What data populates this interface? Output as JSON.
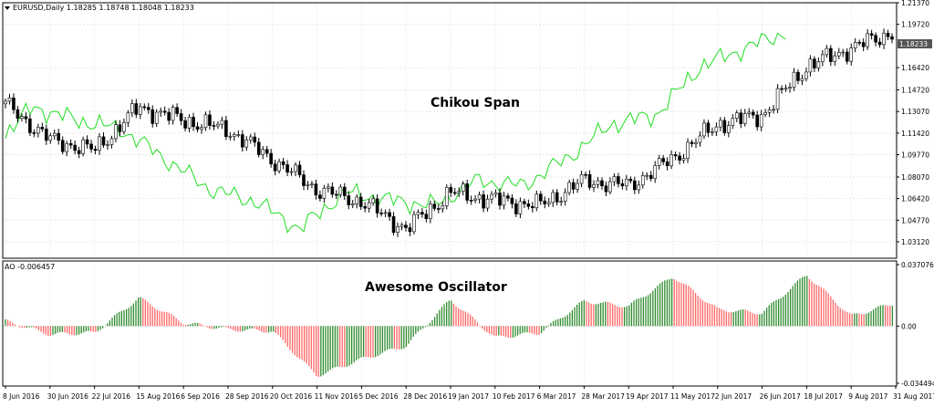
{
  "chart_data": [
    {
      "type": "candlestick",
      "header": "EURUSD,Daily  1.18285 1.18748 1.18048 1.18233",
      "annotation": "Chikou Span",
      "ylim": [
        1.0312,
        1.2137
      ],
      "y_ticks": [
        "1.21370",
        "1.19720",
        "1.18233",
        "1.16420",
        "1.14720",
        "1.13070",
        "1.11420",
        "1.09770",
        "1.08070",
        "1.06420",
        "1.04770",
        "1.03120"
      ],
      "current_price": "1.18233",
      "grid": true,
      "x_ticks": [
        "8 Jun 2016",
        "30 Jun 2016",
        "22 Jul 2016",
        "15 Aug 2016",
        "6 Sep 2016",
        "28 Sep 2016",
        "20 Oct 2016",
        "11 Nov 2016",
        "5 Dec 2016",
        "28 Dec 2016",
        "19 Jan 2017",
        "10 Feb 2017",
        "6 Mar 2017",
        "28 Mar 2017",
        "19 Apr 2017",
        "11 May 2017",
        "2 Jun 2017",
        "26 Jun 2017",
        "18 Jul 2017",
        "9 Aug 2017",
        "31 Aug 2017"
      ],
      "close_anchors": [
        {
          "x": "8 Jun 2016",
          "y": 1.136
        },
        {
          "x": "30 Jun 2016",
          "y": 1.109
        },
        {
          "x": "22 Jul 2016",
          "y": 1.101
        },
        {
          "x": "15 Aug 2016",
          "y": 1.134
        },
        {
          "x": "6 Sep 2016",
          "y": 1.124
        },
        {
          "x": "28 Sep 2016",
          "y": 1.117
        },
        {
          "x": "20 Oct 2016",
          "y": 1.094
        },
        {
          "x": "11 Nov 2016",
          "y": 1.071
        },
        {
          "x": "5 Dec 2016",
          "y": 1.062
        },
        {
          "x": "28 Dec 2016",
          "y": 1.041
        },
        {
          "x": "19 Jan 2017",
          "y": 1.069
        },
        {
          "x": "10 Feb 2017",
          "y": 1.063
        },
        {
          "x": "6 Mar 2017",
          "y": 1.059
        },
        {
          "x": "28 Mar 2017",
          "y": 1.078
        },
        {
          "x": "19 Apr 2017",
          "y": 1.074
        },
        {
          "x": "11 May 2017",
          "y": 1.095
        },
        {
          "x": "2 Jun 2017",
          "y": 1.121
        },
        {
          "x": "26 Jun 2017",
          "y": 1.128
        },
        {
          "x": "18 Jul 2017",
          "y": 1.165
        },
        {
          "x": "9 Aug 2017",
          "y": 1.179
        },
        {
          "x": "31 Aug 2017",
          "y": 1.192
        }
      ],
      "series": [
        {
          "name": "Chikou Span",
          "color": "#22dd22"
        }
      ]
    },
    {
      "type": "bar",
      "header": "AO -0.006457",
      "annotation": "Awesome Oscillator",
      "ylim": [
        -0.034494,
        0.037076
      ],
      "y_ticks": [
        "0.037076",
        "0.00",
        "-0.034494"
      ],
      "grid": true,
      "x_ticks": [
        "8 Jun 2016",
        "30 Jun 2016",
        "22 Jul 2016",
        "15 Aug 2016",
        "6 Sep 2016",
        "28 Sep 2016",
        "20 Oct 2016",
        "11 Nov 2016",
        "5 Dec 2016",
        "28 Dec 2016",
        "19 Jan 2017",
        "10 Feb 2017",
        "6 Mar 2017",
        "28 Mar 2017",
        "19 Apr 2017",
        "11 May 2017",
        "2 Jun 2017",
        "26 Jun 2017",
        "18 Jul 2017",
        "9 Aug 2017",
        "31 Aug 2017"
      ],
      "value_anchors": [
        {
          "x": "8 Jun 2016",
          "y": 0.003
        },
        {
          "x": "30 Jun 2016",
          "y": -0.005
        },
        {
          "x": "22 Jul 2016",
          "y": -0.004
        },
        {
          "x": "15 Aug 2016",
          "y": 0.017
        },
        {
          "x": "6 Sep 2016",
          "y": 0.002
        },
        {
          "x": "28 Sep 2016",
          "y": -0.002
        },
        {
          "x": "20 Oct 2016",
          "y": -0.003
        },
        {
          "x": "11 Nov 2016",
          "y": -0.03
        },
        {
          "x": "5 Dec 2016",
          "y": -0.02
        },
        {
          "x": "28 Dec 2016",
          "y": -0.012
        },
        {
          "x": "19 Jan 2017",
          "y": 0.016
        },
        {
          "x": "10 Feb 2017",
          "y": -0.007
        },
        {
          "x": "6 Mar 2017",
          "y": -0.004
        },
        {
          "x": "28 Mar 2017",
          "y": 0.015
        },
        {
          "x": "19 Apr 2017",
          "y": 0.012
        },
        {
          "x": "11 May 2017",
          "y": 0.03
        },
        {
          "x": "2 Jun 2017",
          "y": 0.01
        },
        {
          "x": "26 Jun 2017",
          "y": 0.008
        },
        {
          "x": "18 Jul 2017",
          "y": 0.031
        },
        {
          "x": "9 Aug 2017",
          "y": 0.006
        },
        {
          "x": "31 Aug 2017",
          "y": 0.014
        }
      ],
      "colors": {
        "up": "#2e8b2e",
        "down": "#ff6666"
      }
    }
  ]
}
